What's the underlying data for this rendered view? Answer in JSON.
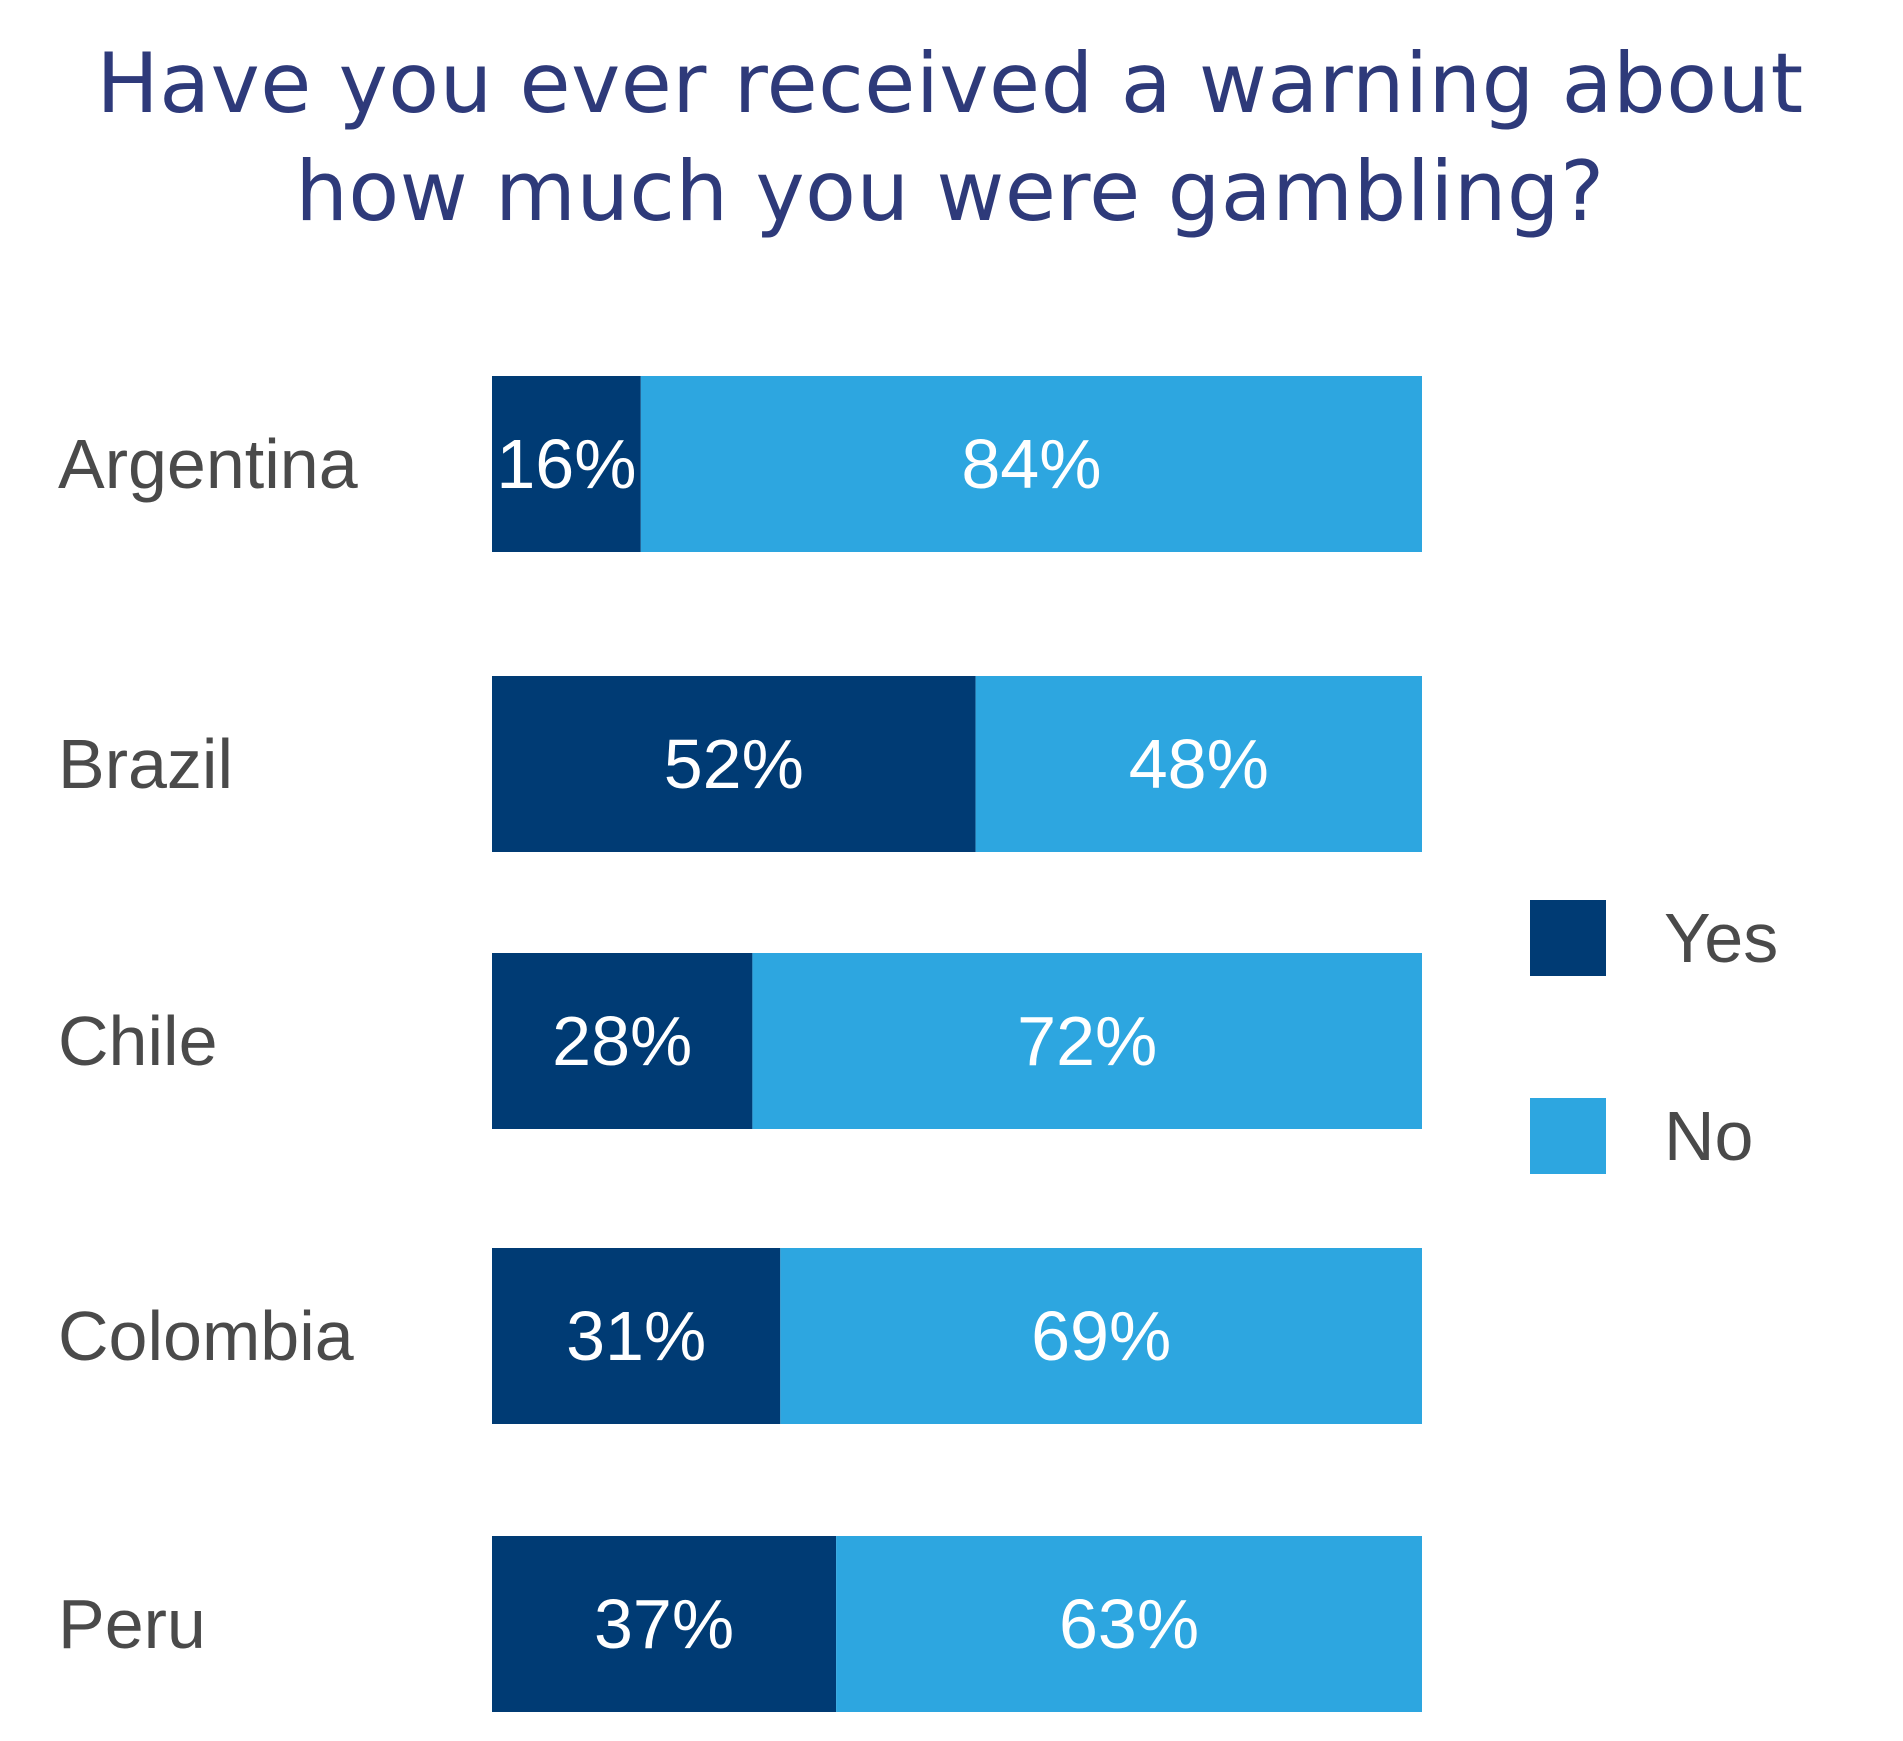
{
  "chart_data": {
    "type": "bar",
    "orientation": "horizontal",
    "stacked": true,
    "title": "Have you ever received a warning about how much you were gambling?",
    "categories": [
      "Argentina",
      "Brazil",
      "Chile",
      "Colombia",
      "Peru"
    ],
    "series": [
      {
        "name": "Yes",
        "color": "#003b74",
        "values": [
          16,
          52,
          28,
          31,
          37
        ],
        "labels": [
          "16%",
          "52%",
          "28%",
          "31%",
          "37%"
        ]
      },
      {
        "name": "No",
        "color": "#2da6e0",
        "values": [
          84,
          48,
          72,
          69,
          63
        ],
        "labels": [
          "84%",
          "48%",
          "72%",
          "69%",
          "63%"
        ]
      }
    ],
    "xlim": [
      0,
      100
    ],
    "grid": false,
    "legend_position": "right"
  }
}
